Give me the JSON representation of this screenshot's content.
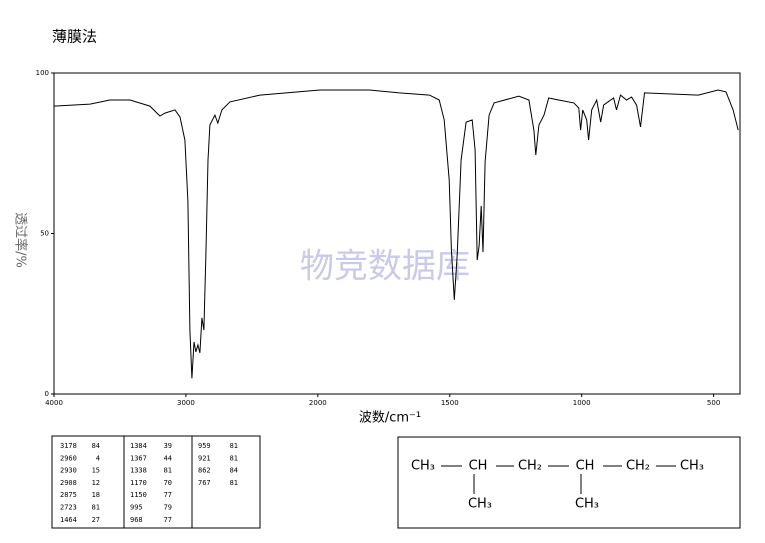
{
  "chart_data": {
    "type": "line",
    "title": "薄膜法",
    "watermark": "物竞数据库",
    "x_label": "波数/cm⁻¹",
    "y_label": "透过率/%",
    "xlim": [
      4000,
      400
    ],
    "ylim": [
      0,
      100
    ],
    "x_scale": {
      "break": 2000,
      "factor": 2
    },
    "xticks": [
      4000,
      3000,
      2000,
      1500,
      1000,
      500
    ],
    "yticks": [
      0,
      50,
      100
    ],
    "series": [
      {
        "color": "#000000",
        "x": [
          4000,
          3727,
          3576,
          3424,
          3273,
          3197,
          3159,
          3083,
          3045,
          3008,
          2985,
          2970,
          2955,
          2939,
          2924,
          2909,
          2894,
          2879,
          2864,
          2848,
          2833,
          2818,
          2780,
          2758,
          2727,
          2667,
          2439,
          1992,
          1804,
          1691,
          1577,
          1540,
          1521,
          1502,
          1494,
          1483,
          1472,
          1457,
          1438,
          1415,
          1404,
          1396,
          1389,
          1381,
          1374,
          1366,
          1351,
          1332,
          1238,
          1200,
          1181,
          1174,
          1162,
          1143,
          1125,
          1087,
          1030,
          1011,
          1004,
          996,
          981,
          974,
          962,
          943,
          928,
          917,
          879,
          868,
          853,
          830,
          811,
          792,
          777,
          762,
          558,
          483,
          453,
          426,
          407
        ],
        "values": [
          89.7,
          90.3,
          91.6,
          91.6,
          89.7,
          86.6,
          87.5,
          88.5,
          86.3,
          79.1,
          60.1,
          19.9,
          4.9,
          16.2,
          13.1,
          15.3,
          12.8,
          23.7,
          19.9,
          44.9,
          72.9,
          83.8,
          86.9,
          84.4,
          88.5,
          91,
          93.1,
          94.7,
          94.7,
          93.8,
          93.1,
          91.6,
          85.4,
          66.7,
          44.9,
          29.3,
          43.3,
          72.9,
          84.7,
          85.4,
          76,
          41.7,
          46.1,
          58.6,
          44.2,
          72.3,
          86.9,
          90.7,
          92.8,
          91.6,
          82.2,
          74.5,
          83.8,
          86.9,
          92.2,
          91.6,
          90.7,
          89.1,
          82.2,
          88.5,
          85.4,
          79.1,
          88.5,
          91.6,
          84.7,
          90,
          92.2,
          88.5,
          93.1,
          91.6,
          92.5,
          90,
          83.2,
          93.8,
          93.1,
          94.7,
          94.1,
          88.5,
          82.2
        ]
      }
    ]
  },
  "peak_table": {
    "columns": [
      [
        [
          "3178",
          "84"
        ],
        [
          "2960",
          "4"
        ],
        [
          "2930",
          "15"
        ],
        [
          "2908",
          "12"
        ],
        [
          "2875",
          "18"
        ],
        [
          "2723",
          "81"
        ],
        [
          "1464",
          "27"
        ]
      ],
      [
        [
          "1384",
          "39"
        ],
        [
          "1367",
          "44"
        ],
        [
          "1338",
          "81"
        ],
        [
          "1170",
          "70"
        ],
        [
          "1150",
          "77"
        ],
        [
          "995",
          "79"
        ],
        [
          "968",
          "77"
        ]
      ],
      [
        [
          "959",
          "81"
        ],
        [
          "921",
          "81"
        ],
        [
          "862",
          "84"
        ],
        [
          "767",
          "81"
        ]
      ]
    ]
  },
  "structure": {
    "chain": [
      "CH₃",
      "CH",
      "CH₂",
      "CH",
      "CH₂",
      "CH₃"
    ],
    "branches": [
      "CH₃",
      "CH₃"
    ]
  }
}
